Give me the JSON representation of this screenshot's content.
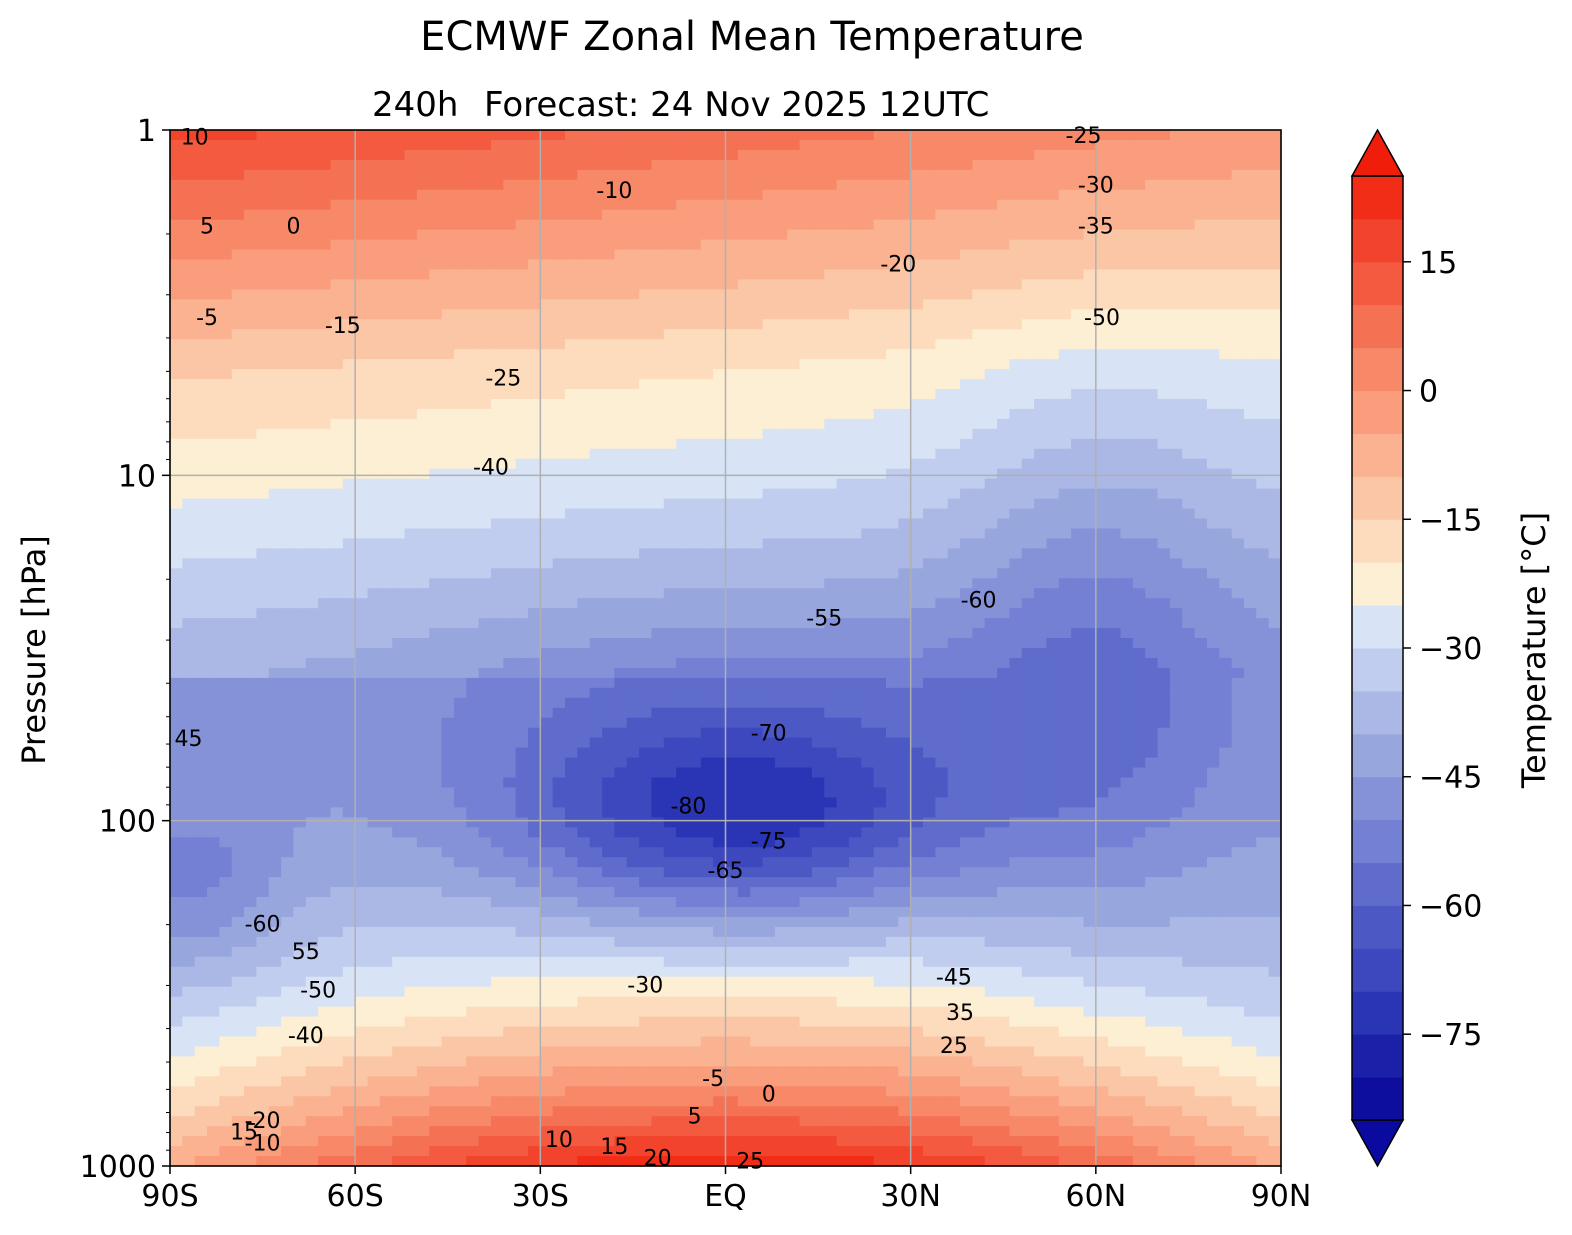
{
  "chart_data": {
    "type": "heatmap",
    "title": "ECMWF Zonal Mean Temperature",
    "subtitle_left": "240h",
    "subtitle_right": "Forecast:  24 Nov 2025  12UTC",
    "ylabel": "Pressure [hPa]",
    "colorbar_label": "Temperature [°C]",
    "x_ticks": [
      "90S",
      "60S",
      "30S",
      "EQ",
      "30N",
      "60N",
      "90N"
    ],
    "x_values": [
      -90,
      -60,
      -30,
      0,
      30,
      60,
      90
    ],
    "y_ticks": [
      "1",
      "10",
      "100",
      "1000"
    ],
    "y_values": [
      1,
      10,
      100,
      1000
    ],
    "y_scale": "log",
    "y_inverted": true,
    "grid": true,
    "colorbar_ticks": [
      "15",
      "0",
      "−15",
      "−30",
      "−45",
      "−60",
      "−75"
    ],
    "colorbar_values": [
      15,
      0,
      -15,
      -30,
      -45,
      -60,
      -75
    ],
    "colorbar_extend": "both",
    "levels": [
      -85,
      -80,
      -75,
      -70,
      -65,
      -60,
      -55,
      -50,
      -45,
      -40,
      -35,
      -30,
      -25,
      -20,
      -15,
      -10,
      -5,
      0,
      5,
      10,
      15,
      20,
      25
    ],
    "colormap": {
      "min_color": "#0a0aa0",
      "cold": [
        "#0d0d9e",
        "#1a20a8",
        "#2a35b5",
        "#3d48bf",
        "#4c58c4",
        "#5f6ccb",
        "#7480d3",
        "#8592d8",
        "#98a6de",
        "#abb8e5",
        "#c0cdee",
        "#d8e4f5"
      ],
      "warm": [
        "#fdefd3",
        "#fcdcbd",
        "#fbc6a6",
        "#fab291",
        "#f99d7d",
        "#f78868",
        "#f57154",
        "#f35a40",
        "#f2442c",
        "#f12d18",
        "#f01d0b"
      ],
      "max_color": "#f01d0b"
    },
    "contour_labels": [
      {
        "text": "10",
        "lat": -86,
        "p": 1.05
      },
      {
        "text": "5",
        "lat": -84,
        "p": 1.9
      },
      {
        "text": "0",
        "lat": -70,
        "p": 1.9
      },
      {
        "text": "-5",
        "lat": -84,
        "p": 3.5
      },
      {
        "text": "-15",
        "lat": -62,
        "p": 3.7
      },
      {
        "text": "-10",
        "lat": -18,
        "p": 1.5
      },
      {
        "text": "-25",
        "lat": 58,
        "p": 1.04
      },
      {
        "text": "-30",
        "lat": 60,
        "p": 1.45
      },
      {
        "text": "-35",
        "lat": 60,
        "p": 1.9
      },
      {
        "text": "-20",
        "lat": 28,
        "p": 2.45
      },
      {
        "text": "-50",
        "lat": 61,
        "p": 3.5
      },
      {
        "text": "-25",
        "lat": -36,
        "p": 5.25
      },
      {
        "text": "-40",
        "lat": -38,
        "p": 9.5
      },
      {
        "text": "-55",
        "lat": 16,
        "p": 26
      },
      {
        "text": "-60",
        "lat": 41,
        "p": 23
      },
      {
        "text": "45",
        "lat": -87,
        "p": 58
      },
      {
        "text": "-70",
        "lat": 7,
        "p": 56
      },
      {
        "text": "-80",
        "lat": -6,
        "p": 91
      },
      {
        "text": "-75",
        "lat": 7,
        "p": 115
      },
      {
        "text": "-65",
        "lat": 0,
        "p": 140
      },
      {
        "text": "-60",
        "lat": -75,
        "p": 200
      },
      {
        "text": "55",
        "lat": -68,
        "p": 240
      },
      {
        "text": "-50",
        "lat": -66,
        "p": 310
      },
      {
        "text": "-40",
        "lat": -68,
        "p": 420
      },
      {
        "text": "-30",
        "lat": -13,
        "p": 300
      },
      {
        "text": "-45",
        "lat": 37,
        "p": 285
      },
      {
        "text": "35",
        "lat": 38,
        "p": 360
      },
      {
        "text": "25",
        "lat": 37,
        "p": 450
      },
      {
        "text": "-5",
        "lat": -2,
        "p": 560
      },
      {
        "text": "0",
        "lat": 7,
        "p": 620
      },
      {
        "text": "5",
        "lat": -5,
        "p": 720
      },
      {
        "text": "-20",
        "lat": -75,
        "p": 740
      },
      {
        "text": "15",
        "lat": -78,
        "p": 800
      },
      {
        "text": "-10",
        "lat": -75,
        "p": 860
      },
      {
        "text": "10",
        "lat": -27,
        "p": 840
      },
      {
        "text": "15",
        "lat": -18,
        "p": 880
      },
      {
        "text": "20",
        "lat": -11,
        "p": 950
      },
      {
        "text": "25",
        "lat": 4,
        "p": 970
      }
    ]
  }
}
